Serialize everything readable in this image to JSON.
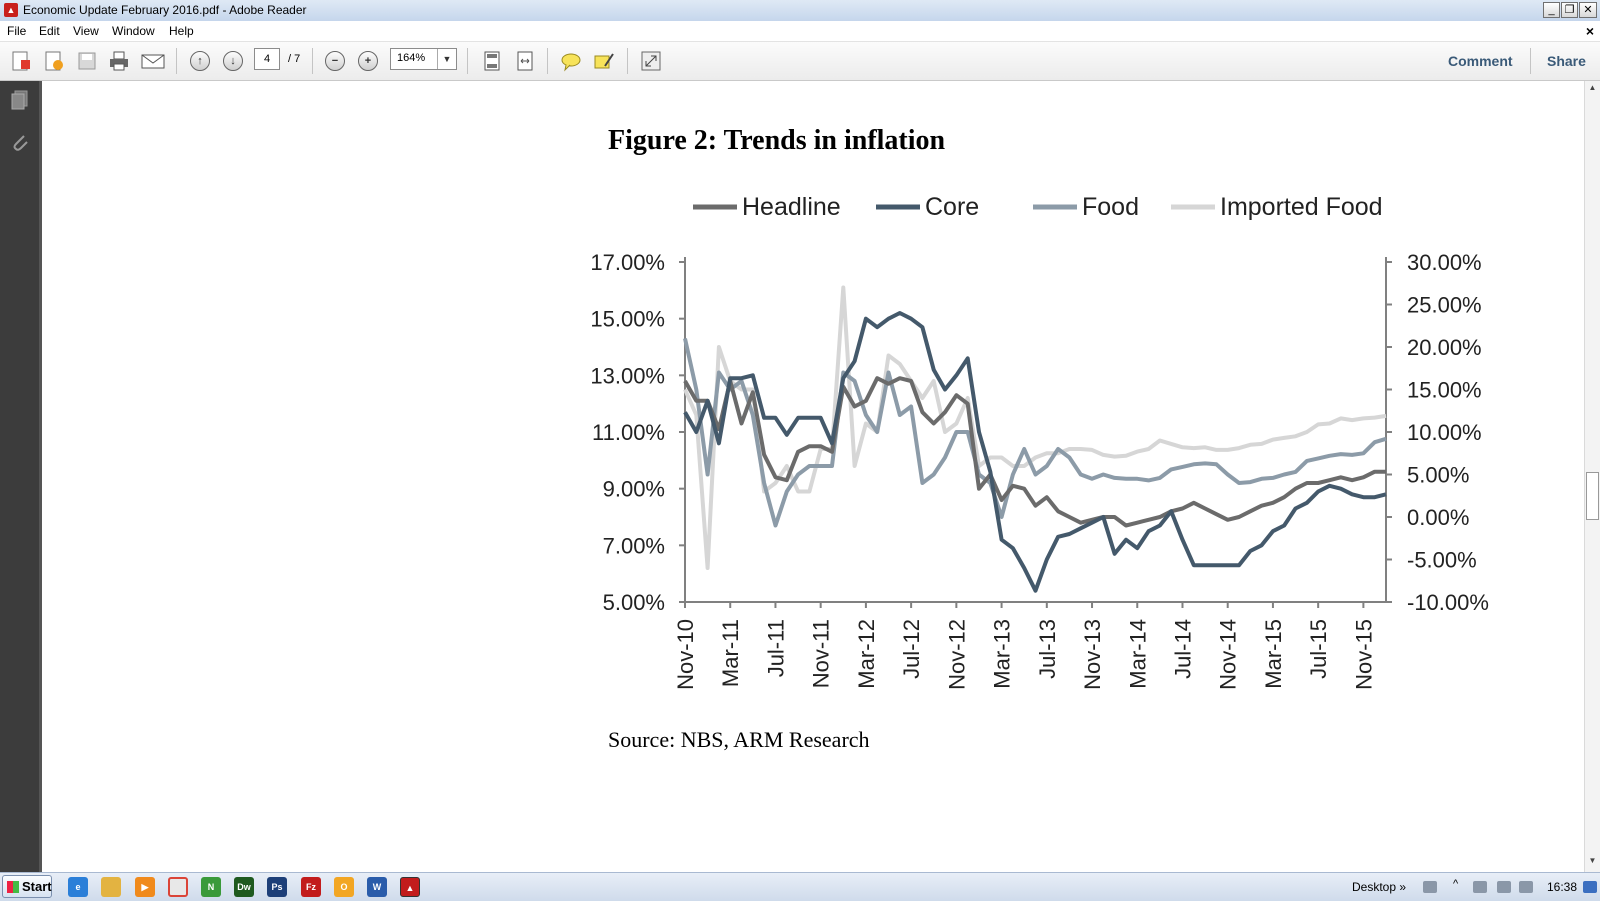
{
  "window": {
    "title": "Economic Update February 2016.pdf - Adobe Reader"
  },
  "menu": {
    "items": [
      "File",
      "Edit",
      "View",
      "Window",
      "Help"
    ],
    "close_doc": "×"
  },
  "toolbar": {
    "page_current": "4",
    "page_total": "/ 7",
    "zoom": "164%",
    "comment_label": "Comment",
    "share_label": "Share"
  },
  "figure": {
    "title": "Figure 2: Trends in inflation",
    "source": "Source: NBS, ARM Research"
  },
  "chart_data": {
    "type": "line",
    "title": "Figure 2: Trends in inflation",
    "legend_position": "top",
    "grid": false,
    "x": [
      "Nov-10",
      "Dec-10",
      "Jan-11",
      "Feb-11",
      "Mar-11",
      "Apr-11",
      "May-11",
      "Jun-11",
      "Jul-11",
      "Aug-11",
      "Sep-11",
      "Oct-11",
      "Nov-11",
      "Dec-11",
      "Jan-12",
      "Feb-12",
      "Mar-12",
      "Apr-12",
      "May-12",
      "Jun-12",
      "Jul-12",
      "Aug-12",
      "Sep-12",
      "Oct-12",
      "Nov-12",
      "Dec-12",
      "Jan-13",
      "Feb-13",
      "Mar-13",
      "Apr-13",
      "May-13",
      "Jun-13",
      "Jul-13",
      "Aug-13",
      "Sep-13",
      "Oct-13",
      "Nov-13",
      "Dec-13",
      "Jan-14",
      "Feb-14",
      "Mar-14",
      "Apr-14",
      "May-14",
      "Jun-14",
      "Jul-14",
      "Aug-14",
      "Sep-14",
      "Oct-14",
      "Nov-14",
      "Dec-14",
      "Jan-15",
      "Feb-15",
      "Mar-15",
      "Apr-15",
      "May-15",
      "Jun-15",
      "Jul-15",
      "Aug-15",
      "Sep-15",
      "Oct-15",
      "Nov-15",
      "Dec-15",
      "Jan-16"
    ],
    "x_tick_labels": [
      "Nov-10",
      "Mar-11",
      "Jul-11",
      "Nov-11",
      "Mar-12",
      "Jul-12",
      "Nov-12",
      "Mar-13",
      "Jul-13",
      "Nov-13",
      "Mar-14",
      "Jul-14",
      "Nov-14",
      "Mar-15",
      "Jul-15",
      "Nov-15"
    ],
    "y_left": {
      "ticks": [
        "17.00%",
        "15.00%",
        "13.00%",
        "11.00%",
        "9.00%",
        "7.00%",
        "5.00%"
      ],
      "ylim": [
        5,
        17
      ]
    },
    "y_right": {
      "ticks": [
        "30.00%",
        "25.00%",
        "20.00%",
        "15.00%",
        "10.00%",
        "5.00%",
        "0.00%",
        "-5.00%",
        "-10.00%"
      ],
      "ylim": [
        -10,
        30
      ]
    },
    "series": [
      {
        "name": "Headline",
        "axis": "left",
        "color": "#6b6b6b",
        "values": [
          12.8,
          12.1,
          12.1,
          11.1,
          12.8,
          11.3,
          12.4,
          10.2,
          9.4,
          9.3,
          10.3,
          10.5,
          10.5,
          10.3,
          12.6,
          11.9,
          12.1,
          12.9,
          12.7,
          12.9,
          12.8,
          11.7,
          11.3,
          11.7,
          12.3,
          12.0,
          9.0,
          9.5,
          8.6,
          9.1,
          9.0,
          8.4,
          8.7,
          8.2,
          8.0,
          7.8,
          7.9,
          8.0,
          8.0,
          7.7,
          7.8,
          7.9,
          8.0,
          8.2,
          8.3,
          8.5,
          8.3,
          8.1,
          7.9,
          8.0,
          8.2,
          8.4,
          8.5,
          8.7,
          9.0,
          9.2,
          9.2,
          9.3,
          9.4,
          9.3,
          9.4,
          9.6,
          9.6
        ]
      },
      {
        "name": "Core",
        "axis": "left",
        "color": "#44596b",
        "values": [
          11.7,
          11.0,
          12.1,
          10.6,
          12.9,
          12.9,
          13.0,
          11.5,
          11.5,
          10.9,
          11.5,
          11.5,
          11.5,
          10.6,
          12.9,
          13.5,
          15.0,
          14.7,
          15.0,
          15.2,
          15.0,
          14.7,
          13.2,
          12.5,
          13.0,
          13.6,
          11.0,
          9.6,
          7.2,
          6.9,
          6.2,
          5.4,
          6.5,
          7.3,
          7.4,
          7.6,
          7.8,
          8.0,
          6.7,
          7.2,
          6.9,
          7.5,
          7.7,
          8.2,
          7.2,
          6.3,
          6.3,
          6.3,
          6.3,
          6.3,
          6.8,
          7.0,
          7.5,
          7.7,
          8.3,
          8.5,
          8.9,
          9.1,
          9.0,
          8.8,
          8.7,
          8.7,
          8.8
        ]
      },
      {
        "name": "Food",
        "axis": "right",
        "color": "#8c9ba8",
        "values": [
          21,
          15,
          5,
          17,
          15,
          16,
          12,
          4,
          -1,
          3,
          5,
          6,
          6,
          6,
          17,
          16,
          12,
          10,
          17,
          12,
          13,
          4,
          5,
          7,
          10,
          10,
          5,
          4,
          0,
          5,
          8,
          5,
          6,
          8,
          7,
          5,
          4.5,
          5,
          4.6,
          4.5,
          4.5,
          4.3,
          4.6,
          5.6,
          5.9,
          6.2,
          6.3,
          6.2,
          5.0,
          4.0,
          4.1,
          4.5,
          4.6,
          5.0,
          5.3,
          6.6,
          6.9,
          7.2,
          7.4,
          7.3,
          7.5,
          8.8,
          9.2
        ]
      },
      {
        "name": "Imported Food",
        "axis": "right",
        "color": "#d6d6d6",
        "values": [
          15,
          12,
          -6,
          20,
          16,
          15,
          15,
          3,
          4,
          6,
          3,
          3,
          8,
          8,
          27,
          6,
          11,
          10,
          19,
          18,
          16,
          14,
          16,
          10,
          11,
          14,
          6,
          7,
          7,
          6,
          6,
          7,
          7.5,
          7.5,
          8,
          8,
          7.9,
          7.3,
          7.1,
          7.2,
          7.7,
          8,
          9,
          8.6,
          8.2,
          8.1,
          8.2,
          7.9,
          7.9,
          8.1,
          8.5,
          8.6,
          9.1,
          9.3,
          9.5,
          10,
          10.9,
          11.0,
          11.6,
          11.4,
          11.6,
          11.7,
          11.9
        ]
      }
    ]
  }
}
